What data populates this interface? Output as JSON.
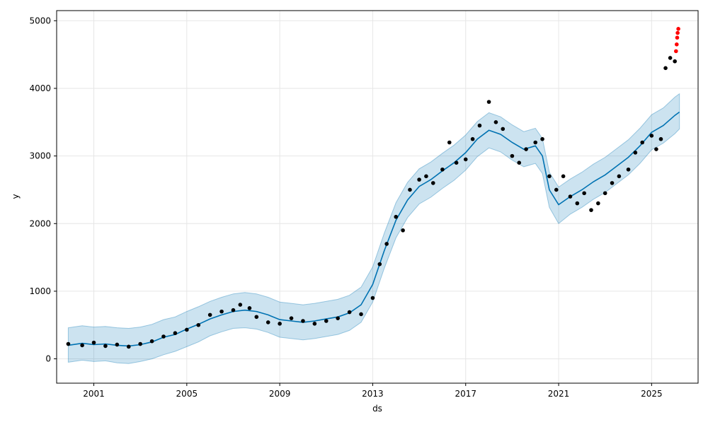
{
  "chart_data": {
    "type": "line",
    "title": "",
    "xlabel": "ds",
    "ylabel": "y",
    "xlim": [
      1999.4,
      2027.0
    ],
    "ylim": [
      -360,
      5150
    ],
    "x_ticks": [
      2001,
      2005,
      2009,
      2013,
      2017,
      2021,
      2025
    ],
    "y_ticks": [
      0,
      1000,
      2000,
      3000,
      4000,
      5000
    ],
    "grid": true,
    "colors": {
      "observed": "#000000",
      "recent_observed": "#ff0000",
      "forecast_line": "#0072B2",
      "uncertainty_band": "#0072B2",
      "grid": "#e6e6e6"
    },
    "series": [
      {
        "role": "forecast",
        "x": [
          1999.9,
          2000.5,
          2001.0,
          2001.5,
          2002.0,
          2002.5,
          2003.0,
          2003.5,
          2004.0,
          2004.5,
          2005.0,
          2005.5,
          2006.0,
          2006.5,
          2007.0,
          2007.5,
          2008.0,
          2008.5,
          2009.0,
          2009.5,
          2010.0,
          2010.5,
          2011.0,
          2011.5,
          2012.0,
          2012.5,
          2013.0,
          2013.5,
          2014.0,
          2014.5,
          2015.0,
          2015.5,
          2016.0,
          2016.5,
          2017.0,
          2017.5,
          2018.0,
          2018.5,
          2019.0,
          2019.5,
          2020.0,
          2020.3,
          2020.6,
          2021.0,
          2021.5,
          2022.0,
          2022.5,
          2023.0,
          2023.5,
          2024.0,
          2024.5,
          2025.0,
          2025.5,
          2026.0,
          2026.2
        ],
        "y": [
          200,
          230,
          210,
          220,
          200,
          190,
          210,
          250,
          320,
          360,
          440,
          510,
          590,
          650,
          700,
          720,
          700,
          650,
          580,
          560,
          540,
          560,
          590,
          620,
          680,
          800,
          1100,
          1600,
          2050,
          2350,
          2550,
          2650,
          2780,
          2900,
          3050,
          3250,
          3380,
          3320,
          3200,
          3100,
          3150,
          3000,
          2500,
          2280,
          2400,
          2500,
          2620,
          2720,
          2850,
          2980,
          3150,
          3350,
          3450,
          3600,
          3650
        ],
        "band_lower": [
          -50,
          -20,
          -40,
          -30,
          -60,
          -70,
          -40,
          0,
          60,
          110,
          180,
          250,
          340,
          400,
          450,
          460,
          440,
          390,
          320,
          300,
          280,
          300,
          330,
          360,
          420,
          540,
          840,
          1340,
          1790,
          2090,
          2290,
          2390,
          2520,
          2640,
          2790,
          2990,
          3120,
          3060,
          2940,
          2840,
          2890,
          2740,
          2240,
          2000,
          2140,
          2240,
          2360,
          2460,
          2590,
          2720,
          2890,
          3090,
          3190,
          3330,
          3400
        ],
        "band_upper": [
          460,
          490,
          470,
          480,
          460,
          450,
          470,
          510,
          580,
          620,
          700,
          770,
          850,
          910,
          960,
          980,
          960,
          910,
          840,
          820,
          800,
          820,
          850,
          880,
          940,
          1060,
          1360,
          1860,
          2310,
          2610,
          2810,
          2910,
          3040,
          3160,
          3310,
          3510,
          3640,
          3580,
          3460,
          3360,
          3410,
          3260,
          2760,
          2540,
          2660,
          2760,
          2880,
          2980,
          3110,
          3240,
          3410,
          3610,
          3710,
          3870,
          3920
        ]
      },
      {
        "role": "observed",
        "x": [
          1999.9,
          2000.5,
          2001.0,
          2001.5,
          2002.0,
          2002.5,
          2003.0,
          2003.5,
          2004.0,
          2004.5,
          2005.0,
          2005.5,
          2006.0,
          2006.5,
          2007.0,
          2007.3,
          2007.7,
          2008.0,
          2008.5,
          2009.0,
          2009.5,
          2010.0,
          2010.5,
          2011.0,
          2011.5,
          2012.0,
          2012.5,
          2013.0,
          2013.3,
          2013.6,
          2014.0,
          2014.3,
          2014.6,
          2015.0,
          2015.3,
          2015.6,
          2016.0,
          2016.3,
          2016.6,
          2017.0,
          2017.3,
          2017.6,
          2018.0,
          2018.3,
          2018.6,
          2019.0,
          2019.3,
          2019.6,
          2020.0,
          2020.3,
          2020.6,
          2020.9,
          2021.2,
          2021.5,
          2021.8,
          2022.1,
          2022.4,
          2022.7,
          2023.0,
          2023.3,
          2023.6,
          2024.0,
          2024.3,
          2024.6,
          2025.0,
          2025.2,
          2025.4,
          2025.6,
          2025.8,
          2026.0
        ],
        "y": [
          220,
          200,
          240,
          190,
          210,
          180,
          220,
          260,
          330,
          380,
          430,
          500,
          650,
          700,
          720,
          800,
          750,
          620,
          540,
          520,
          600,
          560,
          520,
          560,
          600,
          690,
          660,
          900,
          1400,
          1700,
          2100,
          1900,
          2500,
          2650,
          2700,
          2600,
          2800,
          3200,
          2900,
          2950,
          3250,
          3450,
          3800,
          3500,
          3400,
          3000,
          2900,
          3100,
          3200,
          3250,
          2700,
          2500,
          2700,
          2400,
          2300,
          2450,
          2200,
          2300,
          2450,
          2600,
          2700,
          2800,
          3050,
          3200,
          3300,
          3100,
          3250,
          4300,
          4450,
          4400
        ]
      },
      {
        "role": "recent_observed",
        "x": [
          2026.05,
          2026.08,
          2026.1,
          2026.12,
          2026.15
        ],
        "y": [
          4550,
          4650,
          4750,
          4820,
          4880
        ]
      }
    ]
  }
}
